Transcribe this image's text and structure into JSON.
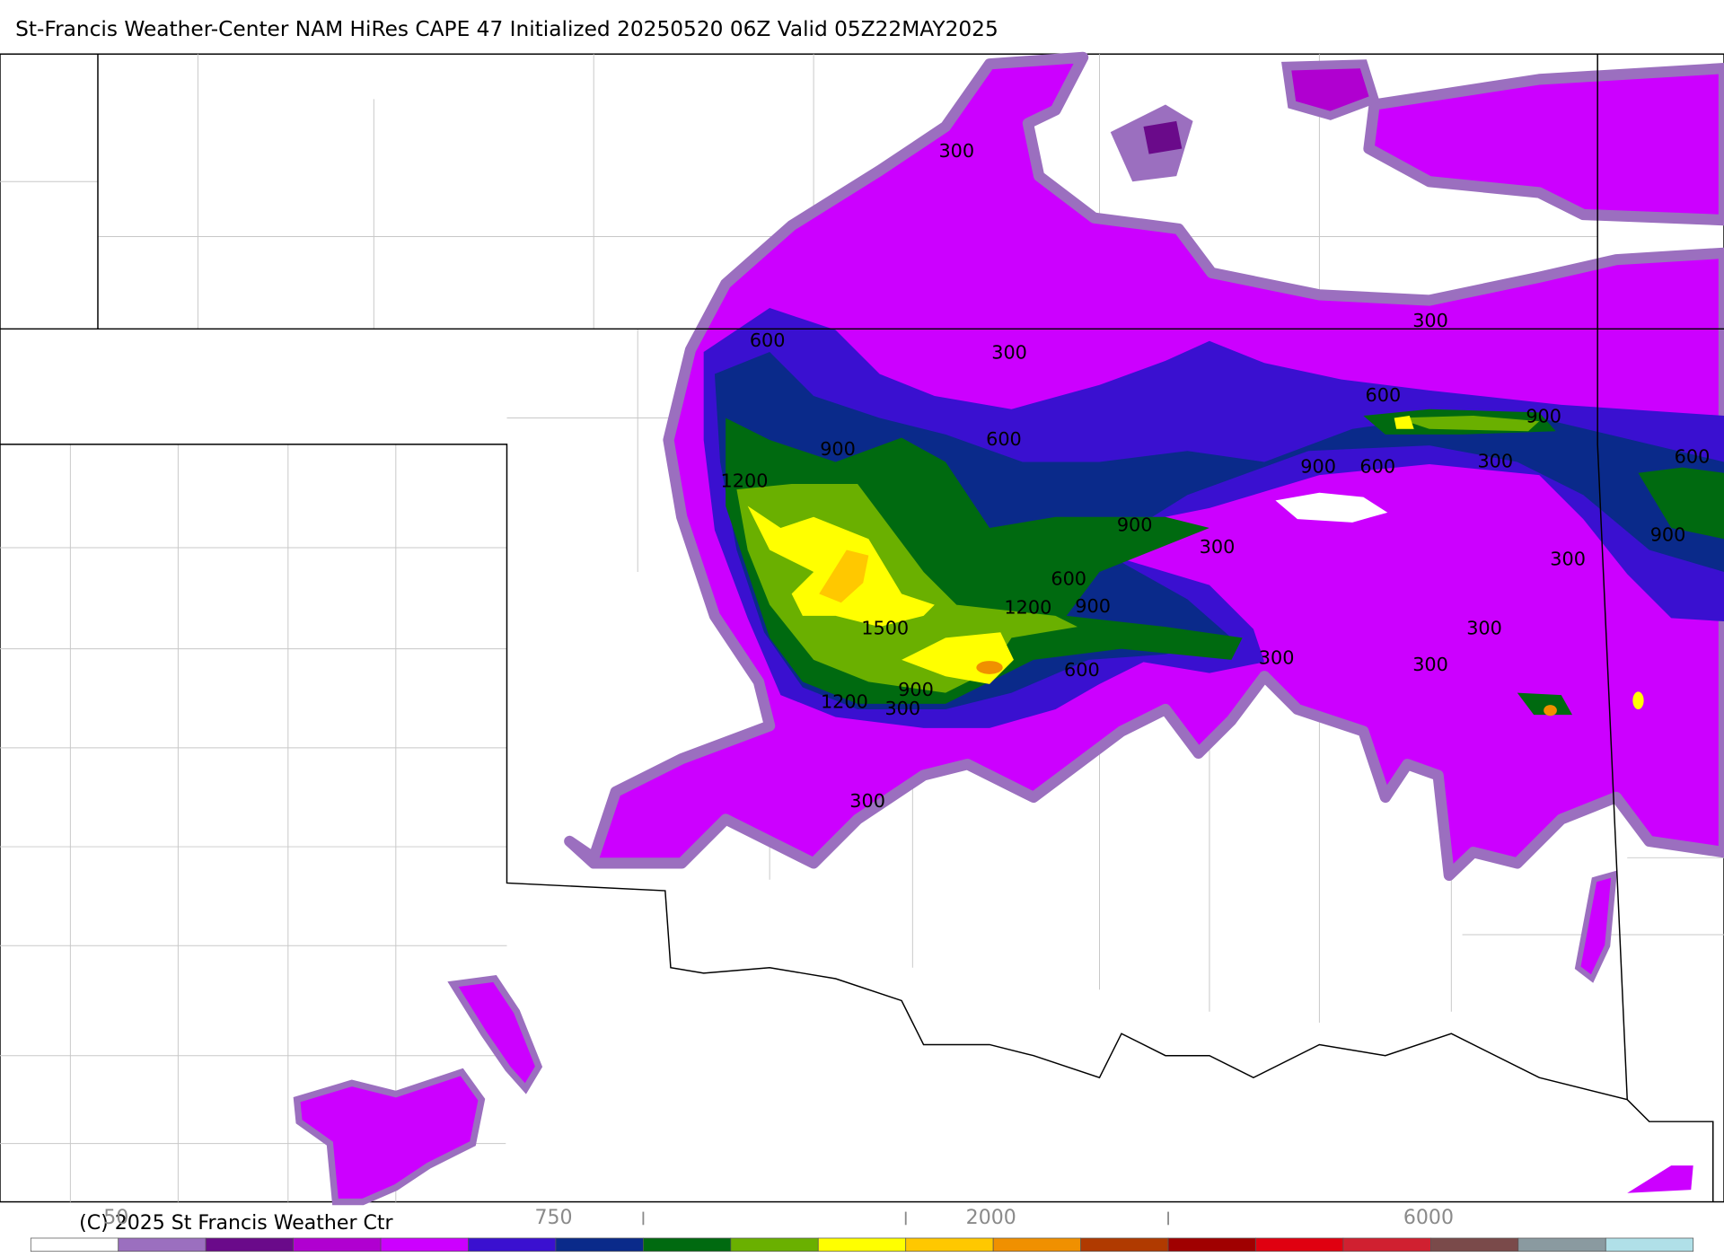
{
  "title": "St-Francis Weather-Center NAM HiRes CAPE  47 Initialized 20250520 06Z Valid 05Z22MAY2025",
  "copyright": "(C) 2025 St Francis Weather Ctr",
  "contour_labels": [
    300,
    600,
    300,
    300,
    600,
    900,
    900,
    600,
    1200,
    900,
    600,
    300,
    600,
    900,
    300,
    300,
    900,
    600,
    1200,
    900,
    1500,
    300,
    300,
    300,
    600,
    900,
    1200,
    300,
    300
  ],
  "colorbar": {
    "colors": [
      "#ffffff",
      "#9b6fbf",
      "#6a0a8a",
      "#b000d0",
      "#cc00ff",
      "#3a10d0",
      "#0a2a8a",
      "#006a10",
      "#6ab000",
      "#ffff00",
      "#ffc800",
      "#f09000",
      "#b03a00",
      "#a00000",
      "#e00010",
      "#d02030",
      "#7a4a4a",
      "#8a9aa0",
      "#b0e0e8"
    ],
    "labels": [
      "50",
      "750",
      "2000",
      "6000"
    ]
  }
}
